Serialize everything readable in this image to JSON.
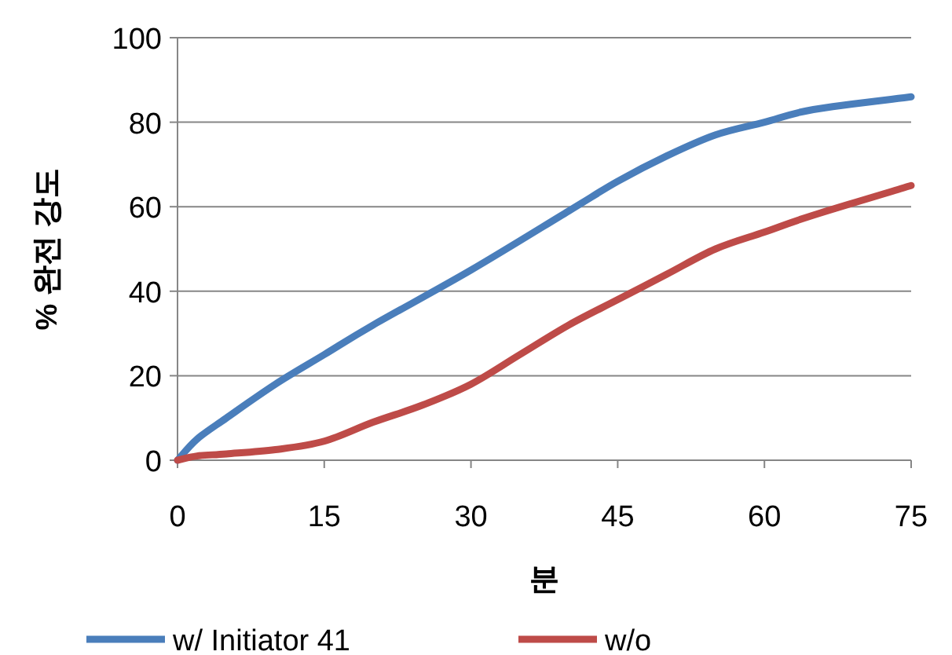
{
  "chart_data": {
    "type": "line",
    "xlabel": "분",
    "ylabel": "% 완전 강도",
    "xlim": [
      0,
      75
    ],
    "xticks": [
      0,
      15,
      30,
      45,
      60,
      75
    ],
    "ylim": [
      0,
      100
    ],
    "yticks": [
      0,
      20,
      40,
      60,
      80,
      100
    ],
    "grid": "y",
    "legend": "bottom",
    "marker": "none",
    "line_style": "solid",
    "series": [
      {
        "name": "w/ Initiator 41",
        "color": "#4a7ebb",
        "x": [
          0,
          2,
          5,
          10,
          15,
          20,
          30,
          40,
          45,
          50,
          55,
          60,
          65,
          75
        ],
        "values": [
          0,
          5,
          10,
          18,
          25,
          32,
          45,
          59,
          66,
          72,
          77,
          80,
          83,
          86
        ]
      },
      {
        "name": "w/o",
        "color": "#be4b48",
        "x": [
          0,
          2,
          5,
          10,
          15,
          20,
          25,
          30,
          35,
          40,
          45,
          50,
          55,
          60,
          65,
          75
        ],
        "values": [
          0,
          1,
          1.5,
          2.5,
          4.5,
          9,
          13,
          18,
          25,
          32,
          38,
          44,
          50,
          54,
          58,
          65
        ]
      }
    ]
  }
}
